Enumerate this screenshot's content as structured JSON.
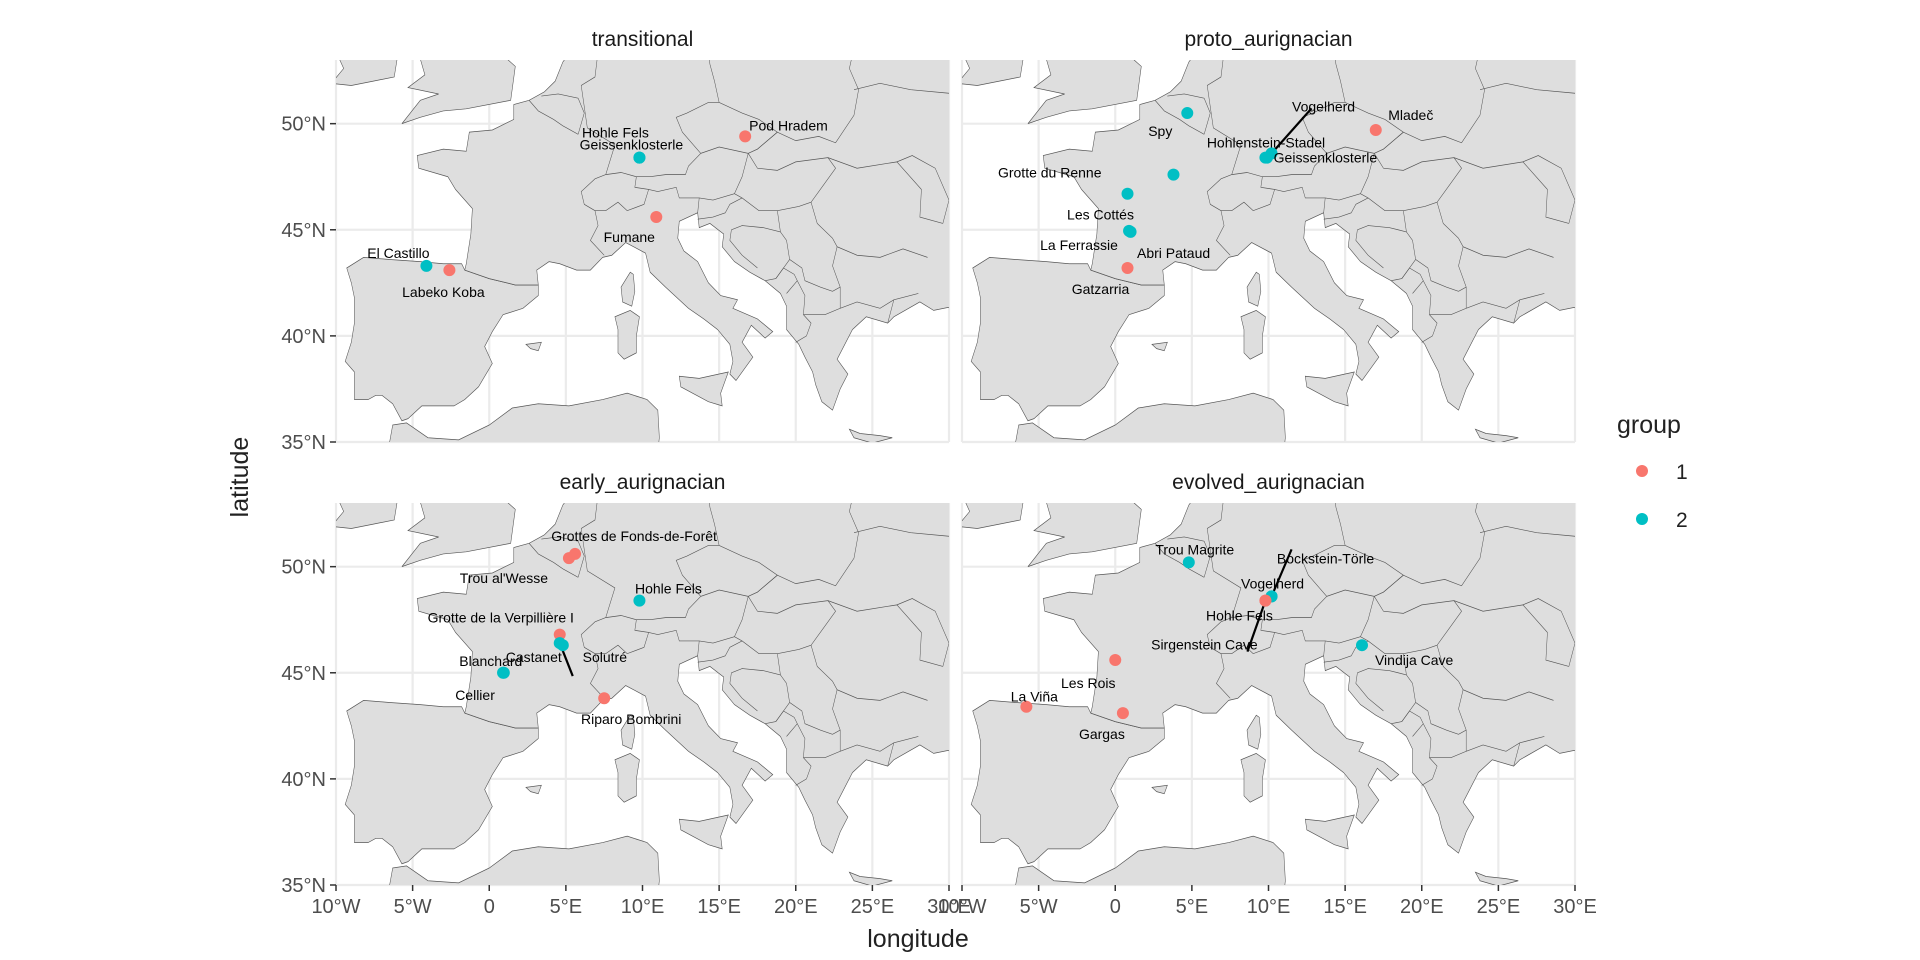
{
  "axes": {
    "xlabel": "longitude",
    "ylabel": "latitude",
    "xlim": [
      -10,
      30
    ],
    "ylim": [
      35,
      53
    ],
    "xticks": [
      {
        "value": -10,
        "label": "10°W"
      },
      {
        "value": -5,
        "label": "5°W"
      },
      {
        "value": 0,
        "label": "0"
      },
      {
        "value": 5,
        "label": "5°E"
      },
      {
        "value": 10,
        "label": "10°E"
      },
      {
        "value": 15,
        "label": "15°E"
      },
      {
        "value": 20,
        "label": "20°E"
      },
      {
        "value": 25,
        "label": "25°E"
      },
      {
        "value": 30,
        "label": "30°E"
      }
    ],
    "yticks": [
      {
        "value": 35,
        "label": "35°N"
      },
      {
        "value": 40,
        "label": "40°N"
      },
      {
        "value": 45,
        "label": "45°N"
      },
      {
        "value": 50,
        "label": "50°N"
      }
    ]
  },
  "legend": {
    "title": "group",
    "position": "right",
    "items": [
      {
        "label": "1",
        "color": "#F8766D"
      },
      {
        "label": "2",
        "color": "#00BFC4"
      }
    ]
  },
  "colors": {
    "land": "#dedede",
    "border": "#555555",
    "grid": "#ebebeb",
    "group1": "#F8766D",
    "group2": "#00BFC4"
  },
  "panels": [
    {
      "title": "transitional",
      "sites": [
        {
          "name": "Pod Hradem",
          "lon": 16.7,
          "lat": 49.4,
          "group": 1
        },
        {
          "name": "Geissenklosterle",
          "lon": 9.8,
          "lat": 48.4,
          "group": 2
        },
        {
          "name": "Hohle Fels",
          "lon": 9.8,
          "lat": 48.4,
          "group": 2
        },
        {
          "name": "Fumane",
          "lon": 10.9,
          "lat": 45.6,
          "group": 1
        },
        {
          "name": "El Castillo",
          "lon": -4.1,
          "lat": 43.3,
          "group": 2
        },
        {
          "name": "Labeko Koba",
          "lon": -2.6,
          "lat": 43.1,
          "group": 1
        }
      ]
    },
    {
      "title": "proto_aurignacian",
      "sites": [
        {
          "name": "Spy",
          "lon": 4.7,
          "lat": 50.5,
          "group": 2
        },
        {
          "name": "Vogelherd",
          "lon": 10.2,
          "lat": 48.6,
          "group": 2
        },
        {
          "name": "Mladeč",
          "lon": 17.0,
          "lat": 49.7,
          "group": 1
        },
        {
          "name": "Hohlenstein-Stadel",
          "lon": 9.9,
          "lat": 48.4,
          "group": 2
        },
        {
          "name": "Grotte du Renne",
          "lon": 3.8,
          "lat": 47.6,
          "group": 2
        },
        {
          "name": "Geissenklosterle",
          "lon": 9.8,
          "lat": 48.4,
          "group": 2
        },
        {
          "name": "Les Cottés",
          "lon": 0.8,
          "lat": 46.7,
          "group": 2
        },
        {
          "name": "La Ferrassie",
          "lon": 0.9,
          "lat": 44.95,
          "group": 2
        },
        {
          "name": "Abri Pataud",
          "lon": 1.0,
          "lat": 44.9,
          "group": 2
        },
        {
          "name": "Gatzarria",
          "lon": 0.8,
          "lat": 43.2,
          "group": 1
        }
      ]
    },
    {
      "title": "early_aurignacian",
      "sites": [
        {
          "name": "Grottes de Fonds-de-Forêt",
          "lon": 5.6,
          "lat": 50.6,
          "group": 1
        },
        {
          "name": "Trou al'Wesse",
          "lon": 5.2,
          "lat": 50.4,
          "group": 1
        },
        {
          "name": "Hohle Fels",
          "lon": 9.8,
          "lat": 48.4,
          "group": 2
        },
        {
          "name": "Grotte de la Verpillière I",
          "lon": 4.6,
          "lat": 46.8,
          "group": 1
        },
        {
          "name": "Castanet",
          "lon": 4.6,
          "lat": 46.4,
          "group": 2
        },
        {
          "name": "Blanchard",
          "lon": 0.95,
          "lat": 45.0,
          "group": 2
        },
        {
          "name": "Cellier",
          "lon": 0.9,
          "lat": 45.0,
          "group": 2
        },
        {
          "name": "Solutré",
          "lon": 4.8,
          "lat": 46.3,
          "group": 2
        },
        {
          "name": "Riparo Bombrini",
          "lon": 7.5,
          "lat": 43.8,
          "group": 1
        }
      ]
    },
    {
      "title": "evolved_aurignacian",
      "sites": [
        {
          "name": "Trou Magrite",
          "lon": 4.8,
          "lat": 50.2,
          "group": 2
        },
        {
          "name": "Bockstein-Törle",
          "lon": 10.2,
          "lat": 48.6,
          "group": 2
        },
        {
          "name": "Vogelherd",
          "lon": 10.2,
          "lat": 48.6,
          "group": 2
        },
        {
          "name": "Hohle Fels",
          "lon": 9.8,
          "lat": 48.4,
          "group": 1
        },
        {
          "name": "Sirgenstein Cave",
          "lon": 9.8,
          "lat": 48.4,
          "group": 1
        },
        {
          "name": "Vindija Cave",
          "lon": 16.1,
          "lat": 46.3,
          "group": 2
        },
        {
          "name": "Les Rois",
          "lon": 0.0,
          "lat": 45.6,
          "group": 1
        },
        {
          "name": "La Viña",
          "lon": -5.8,
          "lat": 43.4,
          "group": 1
        },
        {
          "name": "Gargas",
          "lon": 0.5,
          "lat": 43.1,
          "group": 1
        }
      ]
    }
  ]
}
